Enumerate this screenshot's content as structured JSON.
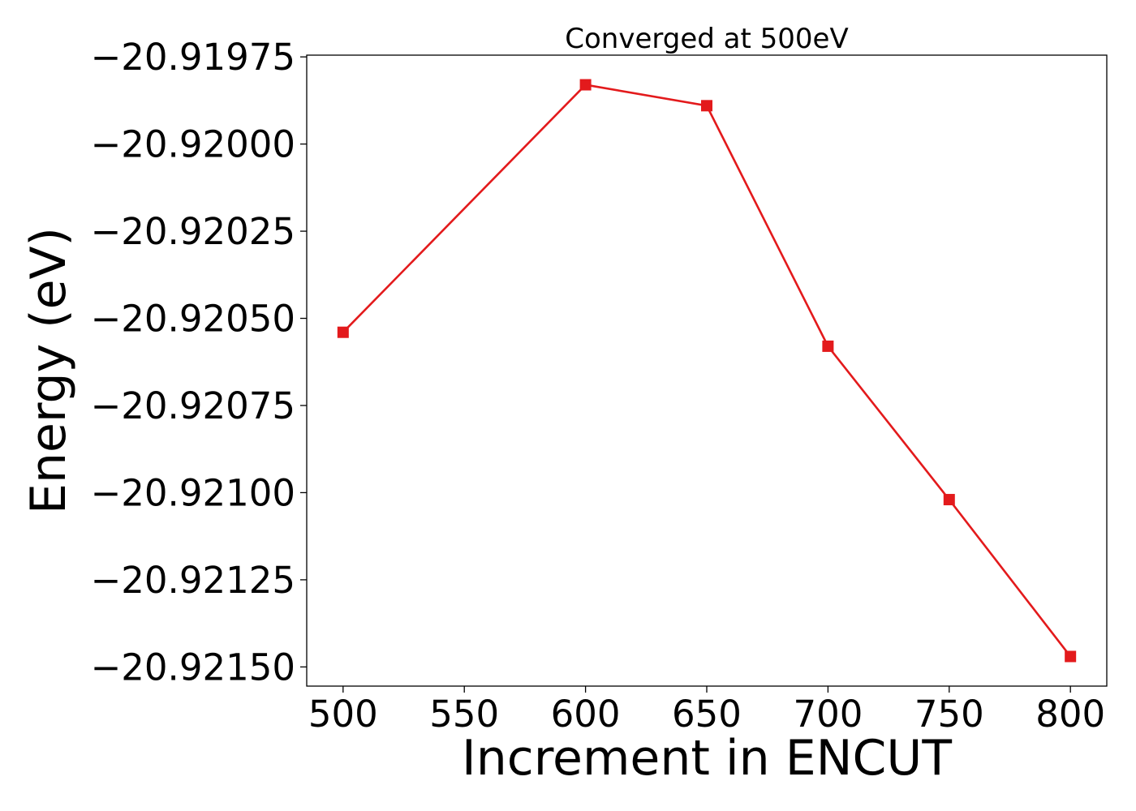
{
  "chart_data": {
    "type": "line",
    "title": "Converged at 500eV",
    "xlabel": "Increment in ENCUT",
    "ylabel": "Energy (eV)",
    "x": [
      500,
      600,
      650,
      700,
      750,
      800
    ],
    "series": [
      {
        "color": "#e31a1c",
        "marker": "square",
        "values": [
          -20.92054,
          -20.91983,
          -20.91989,
          -20.92058,
          -20.92102,
          -20.92147
        ]
      }
    ],
    "xlim": [
      485,
      815
    ],
    "ylim": [
      -20.921555,
      -20.919745
    ],
    "xticks": [
      500,
      550,
      600,
      650,
      700,
      750,
      800
    ],
    "xtick_labels": [
      "500",
      "550",
      "600",
      "650",
      "700",
      "750",
      "800"
    ],
    "yticks": [
      -20.91975,
      -20.92,
      -20.92025,
      -20.9205,
      -20.92075,
      -20.921,
      -20.92125,
      -20.9215
    ],
    "ytick_labels": [
      "−20.91975",
      "−20.92000",
      "−20.92025",
      "−20.92050",
      "−20.92075",
      "−20.92100",
      "−20.92125",
      "−20.92150"
    ],
    "grid": false,
    "legend": "none"
  }
}
